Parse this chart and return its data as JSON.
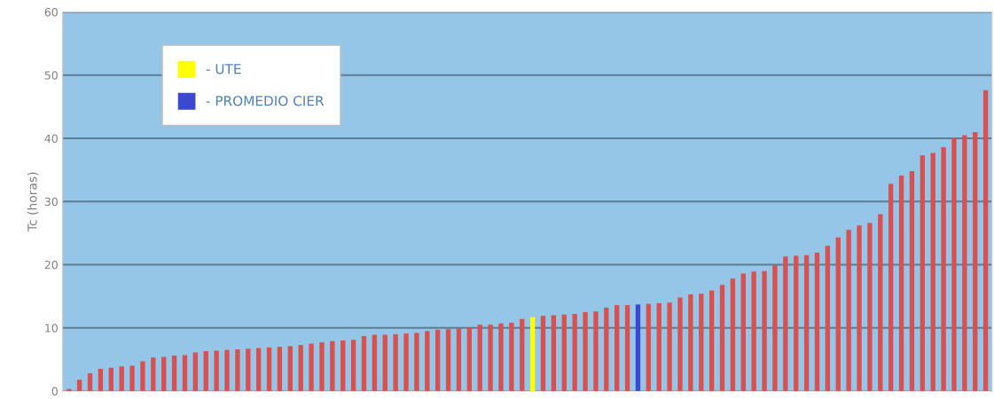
{
  "chart_data": {
    "type": "bar",
    "ylabel": "Tc (horas)",
    "categories": [
      null,
      null,
      null,
      null,
      null,
      null,
      null,
      null,
      null,
      null,
      null,
      null,
      null,
      null,
      null,
      null,
      null,
      null,
      null,
      null,
      null,
      null,
      null,
      null,
      null,
      null,
      null,
      null,
      null,
      null,
      null,
      null,
      null,
      null,
      null,
      null,
      null,
      null,
      null,
      null,
      null,
      null,
      null,
      null,
      null,
      null,
      null,
      null,
      null,
      null,
      null,
      null,
      null,
      null,
      null,
      null,
      null,
      null,
      null,
      null,
      null,
      null,
      null,
      null,
      null,
      null,
      null,
      null,
      null,
      null,
      null,
      null,
      null,
      null,
      null,
      null,
      null,
      null,
      null,
      null,
      null,
      null,
      null,
      null,
      null,
      null,
      null,
      null
    ],
    "series": [
      {
        "color": "#d9504f",
        "values": [
          0.3,
          1.8,
          2.8,
          3.5,
          3.7,
          3.9,
          4.0,
          4.7,
          5.3,
          5.4,
          5.6,
          5.7,
          6.1,
          6.3,
          6.4,
          6.5,
          6.6,
          6.7,
          6.8,
          6.9,
          7.0,
          7.1,
          7.3,
          7.5,
          7.7,
          7.9,
          8.0,
          8.1,
          8.7,
          8.9,
          8.9,
          9.0,
          9.1,
          9.2,
          9.5,
          9.7,
          9.8,
          9.9,
          10.1,
          10.5,
          10.5,
          10.7,
          10.8,
          11.4,
          null,
          11.9,
          12.0,
          12.1,
          12.2,
          12.5,
          12.6,
          13.2,
          13.6,
          13.6,
          null,
          13.8,
          13.9,
          14.0,
          14.8,
          15.3,
          15.4,
          15.9,
          16.8,
          17.8,
          18.6,
          18.9,
          19.0,
          19.9,
          21.3,
          21.4,
          21.5,
          21.9,
          23.0,
          24.3,
          25.5,
          26.2,
          26.6,
          28.0,
          32.8,
          34.1,
          34.8,
          37.3,
          37.7,
          38.6,
          40.1,
          40.5,
          41.0,
          47.6
        ]
      },
      {
        "name": "- UTE",
        "color": "#ffff00",
        "values": [
          null,
          null,
          null,
          null,
          null,
          null,
          null,
          null,
          null,
          null,
          null,
          null,
          null,
          null,
          null,
          null,
          null,
          null,
          null,
          null,
          null,
          null,
          null,
          null,
          null,
          null,
          null,
          null,
          null,
          null,
          null,
          null,
          null,
          null,
          null,
          null,
          null,
          null,
          null,
          null,
          null,
          null,
          null,
          null,
          11.7,
          null,
          null,
          null,
          null,
          null,
          null,
          null,
          null,
          null,
          null,
          null,
          null,
          null,
          null,
          null,
          null,
          null,
          null,
          null,
          null,
          null,
          null,
          null,
          null,
          null,
          null,
          null,
          null,
          null,
          null,
          null,
          null,
          null,
          null,
          null,
          null,
          null,
          null,
          null,
          null,
          null,
          null,
          null
        ]
      },
      {
        "name": "- PROMEDIO CIER",
        "color": "#3b48d0",
        "values": [
          null,
          null,
          null,
          null,
          null,
          null,
          null,
          null,
          null,
          null,
          null,
          null,
          null,
          null,
          null,
          null,
          null,
          null,
          null,
          null,
          null,
          null,
          null,
          null,
          null,
          null,
          null,
          null,
          null,
          null,
          null,
          null,
          null,
          null,
          null,
          null,
          null,
          null,
          null,
          null,
          null,
          null,
          null,
          null,
          null,
          null,
          null,
          null,
          null,
          null,
          null,
          null,
          null,
          null,
          13.7,
          null,
          null,
          null,
          null,
          null,
          null,
          null,
          null,
          null,
          null,
          null,
          null,
          null,
          null,
          null,
          null,
          null,
          null,
          null,
          null,
          null,
          null,
          null,
          null,
          null,
          null,
          null,
          null,
          null,
          null,
          null,
          null,
          null
        ]
      }
    ],
    "ylim": [
      0,
      60
    ],
    "yticks": [
      0,
      10,
      20,
      30,
      40,
      50,
      60
    ],
    "grid": "y",
    "legend": "top left",
    "tick_labels": "y"
  }
}
